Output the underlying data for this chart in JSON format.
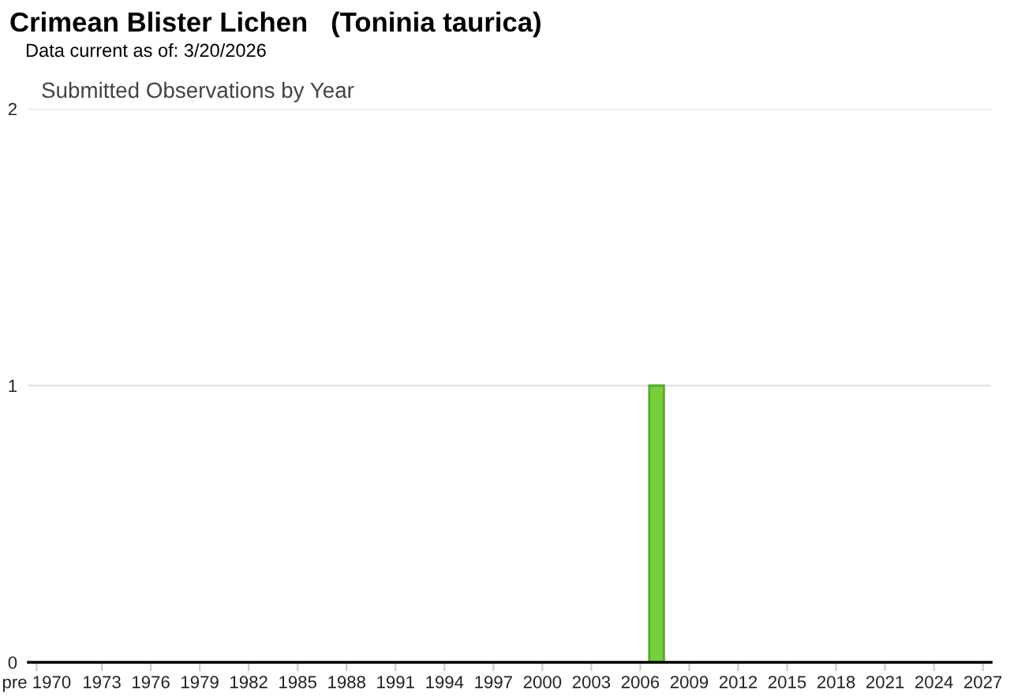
{
  "chart_data": {
    "type": "bar",
    "title": "Crimean Blister Lichen   (Toninia taurica)",
    "subtitle": "Data current as of: 3/20/2026",
    "annotations": [
      "Submitted Observations by Year"
    ],
    "categories": [
      "pre 1970",
      null,
      null,
      null,
      "1973",
      null,
      null,
      "1976",
      null,
      null,
      "1979",
      null,
      null,
      "1982",
      null,
      null,
      "1985",
      null,
      null,
      "1988",
      null,
      null,
      "1991",
      null,
      null,
      "1994",
      null,
      null,
      "1997",
      null,
      null,
      "2000",
      null,
      null,
      "2003",
      null,
      null,
      "2006",
      null,
      null,
      "2009",
      null,
      null,
      "2012",
      null,
      null,
      "2015",
      null,
      null,
      "2018",
      null,
      null,
      "2021",
      null,
      null,
      "2024",
      null,
      null,
      "2027"
    ],
    "values": [
      0,
      0,
      0,
      0,
      0,
      0,
      0,
      0,
      0,
      0,
      0,
      0,
      0,
      0,
      0,
      0,
      0,
      0,
      0,
      0,
      0,
      0,
      0,
      0,
      0,
      0,
      0,
      0,
      0,
      0,
      0,
      0,
      0,
      0,
      0,
      0,
      0,
      0,
      1,
      0,
      0,
      0,
      0,
      0,
      0,
      0,
      0,
      0,
      0,
      0,
      0,
      0,
      0,
      0,
      0,
      0,
      0,
      0,
      0
    ],
    "color": "#74cf3a",
    "ylim": [
      0,
      2
    ],
    "yticks": [
      0,
      1,
      2
    ],
    "grid": "y"
  }
}
